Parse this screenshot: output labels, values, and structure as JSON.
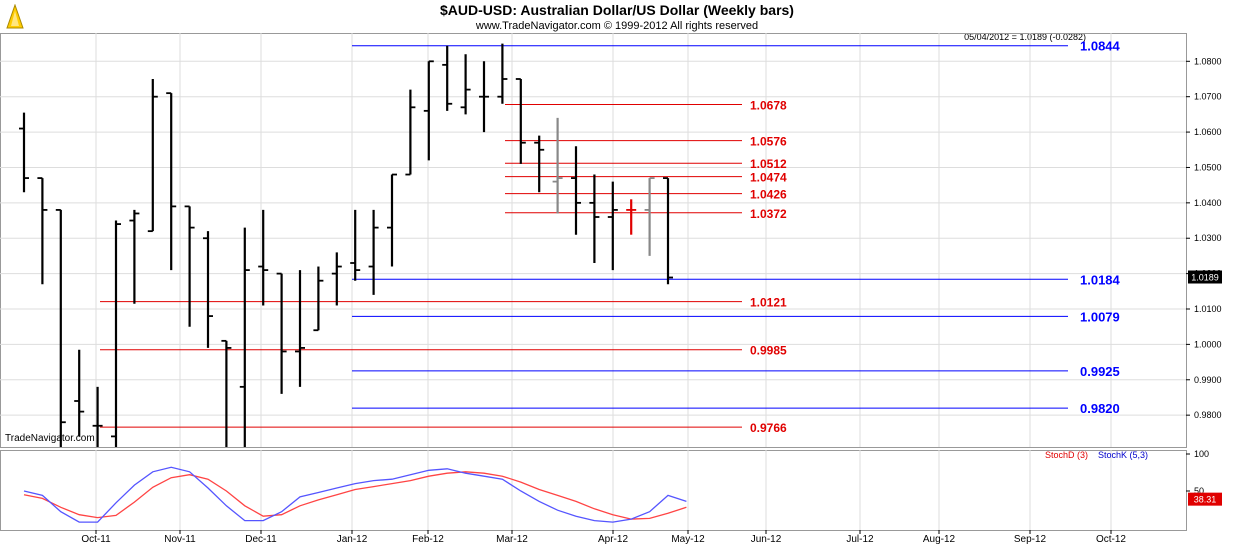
{
  "title": "$AUD-USD:  Australian Dollar/US Dollar  (Weekly bars)",
  "subtitle": "www.TradeNavigator.com © 1999-2012 All rights reserved",
  "price_readout": "05/04/2012 = 1.0189 (-0.0282)",
  "watermark": "TradeNavigator.com",
  "colors": {
    "bar": "#000000",
    "gray_bar": "#888888",
    "red_bar": "#e00000",
    "fib_red": "#e00000",
    "fib_blue": "#0000ff",
    "grid": "#dddddd",
    "stochD": "#ff4444",
    "stochK": "#5555ff"
  },
  "chart_data": [
    {
      "type": "ohlc",
      "title": "",
      "x_tick_labels": [
        "Oct-11",
        "Nov-11",
        "Dec-11",
        "Jan-12",
        "Feb-12",
        "Mar-12",
        "Apr-12",
        "May-12",
        "Jun-12",
        "Jul-12",
        "Aug-12",
        "Sep-12",
        "Oct-12"
      ],
      "y_tick_labels": [
        "1.0800",
        "1.0700",
        "1.0600",
        "1.0500",
        "1.0400",
        "1.0300",
        "1.0200",
        "1.0100",
        "1.0000",
        "0.9900",
        "0.9800"
      ],
      "ylim": [
        0.971,
        1.088
      ],
      "last_price": "1.0189",
      "bars": [
        {
          "o": 1.061,
          "h": 1.0655,
          "l": 1.043,
          "c": 1.047
        },
        {
          "o": 1.047,
          "h": 1.047,
          "l": 1.017,
          "c": 1.038
        },
        {
          "o": 1.038,
          "h": 1.038,
          "l": 0.958,
          "c": 0.978
        },
        {
          "o": 0.984,
          "h": 0.9985,
          "l": 0.974,
          "c": 0.981
        },
        {
          "o": 0.977,
          "h": 0.988,
          "l": 0.97,
          "c": 0.977
        },
        {
          "o": 0.974,
          "h": 1.035,
          "l": 0.971,
          "c": 1.034
        },
        {
          "o": 1.035,
          "h": 1.038,
          "l": 1.0115,
          "c": 1.037
        },
        {
          "o": 1.032,
          "h": 1.075,
          "l": 1.032,
          "c": 1.07
        },
        {
          "o": 1.071,
          "h": 1.071,
          "l": 1.021,
          "c": 1.039
        },
        {
          "o": 1.039,
          "h": 1.039,
          "l": 1.005,
          "c": 1.033
        },
        {
          "o": 1.03,
          "h": 1.032,
          "l": 0.999,
          "c": 1.008
        },
        {
          "o": 1.001,
          "h": 1.001,
          "l": 0.969,
          "c": 0.999
        },
        {
          "o": 0.988,
          "h": 1.033,
          "l": 0.97,
          "c": 1.021
        },
        {
          "o": 1.022,
          "h": 1.038,
          "l": 1.011,
          "c": 1.021
        },
        {
          "o": 1.02,
          "h": 1.02,
          "l": 0.986,
          "c": 0.998
        },
        {
          "o": 0.998,
          "h": 1.021,
          "l": 0.988,
          "c": 0.999
        },
        {
          "o": 1.004,
          "h": 1.022,
          "l": 1.005,
          "c": 1.018
        },
        {
          "o": 1.02,
          "h": 1.026,
          "l": 1.011,
          "c": 1.022
        },
        {
          "o": 1.023,
          "h": 1.038,
          "l": 1.018,
          "c": 1.021
        },
        {
          "o": 1.022,
          "h": 1.038,
          "l": 1.014,
          "c": 1.033
        },
        {
          "o": 1.033,
          "h": 1.048,
          "l": 1.022,
          "c": 1.048
        },
        {
          "o": 1.048,
          "h": 1.072,
          "l": 1.048,
          "c": 1.067
        },
        {
          "o": 1.066,
          "h": 1.08,
          "l": 1.052,
          "c": 1.08
        },
        {
          "o": 1.079,
          "h": 1.0844,
          "l": 1.066,
          "c": 1.068
        },
        {
          "o": 1.067,
          "h": 1.082,
          "l": 1.065,
          "c": 1.072
        },
        {
          "o": 1.07,
          "h": 1.08,
          "l": 1.06,
          "c": 1.07
        },
        {
          "o": 1.07,
          "h": 1.085,
          "l": 1.068,
          "c": 1.075
        },
        {
          "o": 1.075,
          "h": 1.075,
          "l": 1.051,
          "c": 1.057
        },
        {
          "o": 1.057,
          "h": 1.059,
          "l": 1.043,
          "c": 1.055
        },
        {
          "o": 1.046,
          "h": 1.064,
          "l": 1.037,
          "c": 1.047
        },
        {
          "o": 1.047,
          "h": 1.056,
          "l": 1.031,
          "c": 1.04
        },
        {
          "o": 1.04,
          "h": 1.048,
          "l": 1.023,
          "c": 1.036
        },
        {
          "o": 1.036,
          "h": 1.046,
          "l": 1.021,
          "c": 1.038
        },
        {
          "o": 1.038,
          "h": 1.041,
          "l": 1.031,
          "c": 1.038
        },
        {
          "o": 1.038,
          "h": 1.047,
          "l": 1.025,
          "c": 1.047
        },
        {
          "o": 1.047,
          "h": 1.047,
          "l": 1.017,
          "c": 1.0189
        }
      ],
      "bar_colors_override": {
        "29": "gray",
        "33": "red",
        "34": "gray"
      },
      "fib_levels_red": [
        {
          "label": "1.0678",
          "value": 1.0678
        },
        {
          "label": "1.0576",
          "value": 1.0576
        },
        {
          "label": "1.0512",
          "value": 1.0512
        },
        {
          "label": "1.0474",
          "value": 1.0474
        },
        {
          "label": "1.0426",
          "value": 1.0426
        },
        {
          "label": "1.0372",
          "value": 1.0372
        },
        {
          "label": "1.0121",
          "value": 1.0121
        },
        {
          "label": "0.9985",
          "value": 0.9985
        },
        {
          "label": "0.9766",
          "value": 0.9766
        }
      ],
      "fib_levels_blue": [
        {
          "label": "1.0844",
          "value": 1.0844
        },
        {
          "label": "1.0184",
          "value": 1.0184
        },
        {
          "label": "1.0079",
          "value": 1.0079
        },
        {
          "label": "0.9925",
          "value": 0.9925
        },
        {
          "label": "0.9820",
          "value": 0.982
        }
      ]
    },
    {
      "type": "line",
      "title": "",
      "ylim": [
        0,
        100
      ],
      "y_tick_labels": [
        "100",
        "50"
      ],
      "last_value": "38.31",
      "series": [
        {
          "name": "StochD (3)",
          "color": "#ff4444",
          "values": [
            45,
            40,
            28,
            18,
            14,
            17,
            35,
            55,
            68,
            72,
            66,
            50,
            30,
            16,
            18,
            30,
            38,
            45,
            52,
            56,
            60,
            64,
            70,
            74,
            76,
            74,
            70,
            62,
            52,
            44,
            36,
            26,
            18,
            12,
            13,
            20,
            28
          ]
        },
        {
          "name": "StochK (5,3)",
          "color": "#5555ff",
          "values": [
            50,
            44,
            22,
            8,
            8,
            34,
            58,
            76,
            82,
            76,
            54,
            30,
            10,
            10,
            22,
            42,
            48,
            54,
            60,
            64,
            66,
            72,
            78,
            80,
            74,
            70,
            66,
            50,
            36,
            24,
            16,
            10,
            8,
            12,
            22,
            44,
            36
          ]
        }
      ]
    }
  ]
}
